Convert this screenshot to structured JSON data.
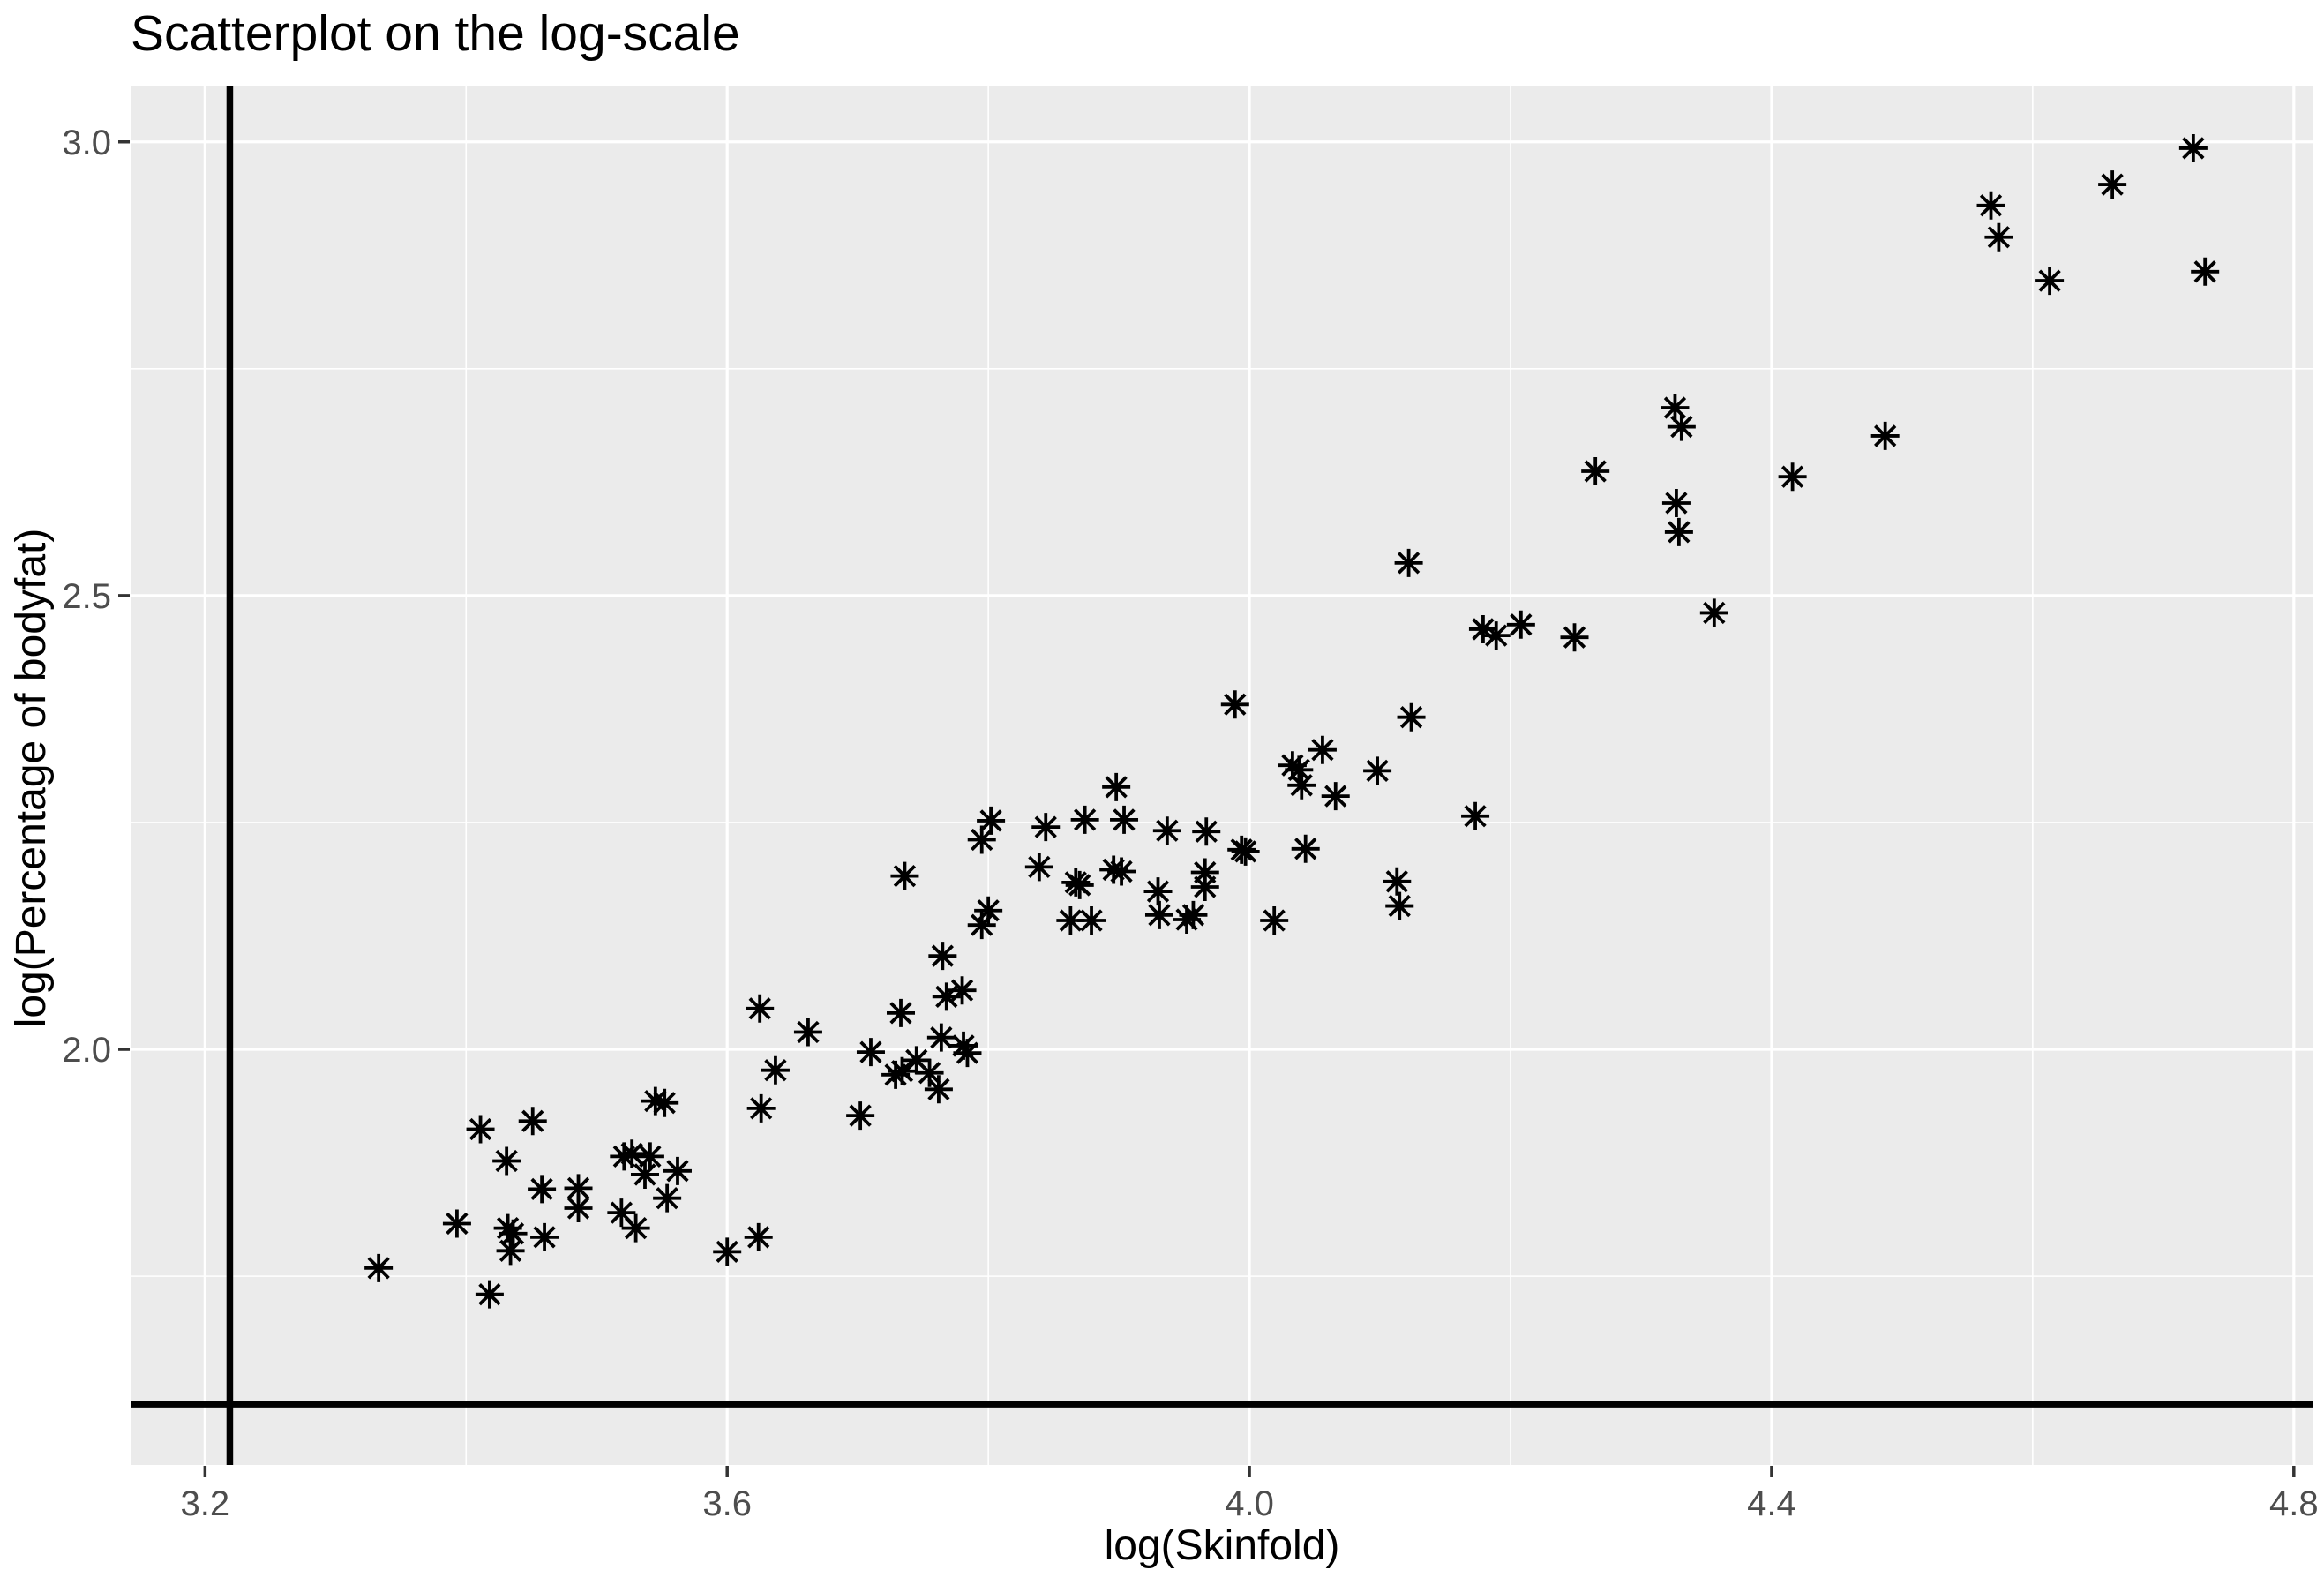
{
  "title": "Scatterplot on the log-scale",
  "chart_data": {
    "type": "scatter",
    "title": "Scatterplot on the log-scale",
    "xlabel": "log(Skinfold)",
    "ylabel": "log(Percentage of bodyfat)",
    "marker": "asterisk-8-spoke",
    "grid": "on",
    "legend": "none",
    "xlim": [
      3.143,
      4.815
    ],
    "ylim": [
      1.542,
      3.062
    ],
    "x_ticks": [
      3.2,
      3.6,
      4.0,
      4.4,
      4.8
    ],
    "x_tick_labels": [
      "3.2",
      "3.6",
      "4.0",
      "4.4",
      "4.8"
    ],
    "y_ticks": [
      2.0,
      2.5,
      3.0
    ],
    "y_tick_labels": [
      "2.0",
      "2.5",
      "3.0"
    ],
    "x_minor_gridlines": [
      3.4,
      3.8,
      4.2,
      4.6
    ],
    "y_minor_gridlines": [
      1.75,
      2.25,
      2.75
    ],
    "vline_x": 3.219,
    "hline_y": 1.609,
    "colors": {
      "panel_background": "#EBEBEB",
      "gridline": "#FFFFFF",
      "tick_mark": "#333333",
      "tick_label": "#4D4D4D",
      "point": "#000000",
      "reference_line": "#000000",
      "title": "#000000"
    },
    "points": [
      [
        3.333,
        1.759
      ],
      [
        3.393,
        1.808
      ],
      [
        3.411,
        1.912
      ],
      [
        3.418,
        1.73
      ],
      [
        3.431,
        1.877
      ],
      [
        3.432,
        1.803
      ],
      [
        3.436,
        1.797
      ],
      [
        3.434,
        1.778
      ],
      [
        3.451,
        1.921
      ],
      [
        3.458,
        1.846
      ],
      [
        3.46,
        1.793
      ],
      [
        3.486,
        1.847
      ],
      [
        3.486,
        1.825
      ],
      [
        3.519,
        1.82
      ],
      [
        3.521,
        1.882
      ],
      [
        3.527,
        1.885
      ],
      [
        3.53,
        1.803
      ],
      [
        3.537,
        1.862
      ],
      [
        3.541,
        1.882
      ],
      [
        3.545,
        1.943
      ],
      [
        3.552,
        1.941
      ],
      [
        3.554,
        1.836
      ],
      [
        3.562,
        1.866
      ],
      [
        3.6,
        1.777
      ],
      [
        3.624,
        1.793
      ],
      [
        3.625,
        2.045
      ],
      [
        3.626,
        1.935
      ],
      [
        3.637,
        1.977
      ],
      [
        3.662,
        2.019
      ],
      [
        3.702,
        1.927
      ],
      [
        3.71,
        1.997
      ],
      [
        3.729,
        1.972
      ],
      [
        3.733,
        2.04
      ],
      [
        3.734,
        1.976
      ],
      [
        3.736,
        2.191
      ],
      [
        3.745,
        1.988
      ],
      [
        3.755,
        1.974
      ],
      [
        3.762,
        1.956
      ],
      [
        3.764,
        2.013
      ],
      [
        3.765,
        2.103
      ],
      [
        3.768,
        2.058
      ],
      [
        3.78,
        2.065
      ],
      [
        3.781,
        2.004
      ],
      [
        3.784,
        1.996
      ],
      [
        3.795,
        2.231
      ],
      [
        3.795,
        2.137
      ],
      [
        3.8,
        2.153
      ],
      [
        3.802,
        2.252
      ],
      [
        3.839,
        2.201
      ],
      [
        3.844,
        2.245
      ],
      [
        3.863,
        2.142
      ],
      [
        3.867,
        2.184
      ],
      [
        3.87,
        2.181
      ],
      [
        3.874,
        2.253
      ],
      [
        3.879,
        2.142
      ],
      [
        3.896,
        2.198
      ],
      [
        3.898,
        2.289
      ],
      [
        3.902,
        2.196
      ],
      [
        3.904,
        2.253
      ],
      [
        3.93,
        2.174
      ],
      [
        3.931,
        2.148
      ],
      [
        3.937,
        2.241
      ],
      [
        3.952,
        2.143
      ],
      [
        3.957,
        2.148
      ],
      [
        3.966,
        2.195
      ],
      [
        3.966,
        2.179
      ],
      [
        3.967,
        2.24
      ],
      [
        3.989,
        2.38
      ],
      [
        3.994,
        2.22
      ],
      [
        3.997,
        2.218
      ],
      [
        4.019,
        2.142
      ],
      [
        4.033,
        2.313
      ],
      [
        4.038,
        2.308
      ],
      [
        4.04,
        2.291
      ],
      [
        4.043,
        2.221
      ],
      [
        4.056,
        2.33
      ],
      [
        4.066,
        2.279
      ],
      [
        4.098,
        2.307
      ],
      [
        4.113,
        2.185
      ],
      [
        4.115,
        2.158
      ],
      [
        4.122,
        2.536
      ],
      [
        4.124,
        2.366
      ],
      [
        4.173,
        2.257
      ],
      [
        4.179,
        2.463
      ],
      [
        4.189,
        2.456
      ],
      [
        4.208,
        2.468
      ],
      [
        4.249,
        2.454
      ],
      [
        4.265,
        2.637
      ],
      [
        4.326,
        2.707
      ],
      [
        4.327,
        2.602
      ],
      [
        4.329,
        2.57
      ],
      [
        4.331,
        2.686
      ],
      [
        4.356,
        2.481
      ],
      [
        4.416,
        2.631
      ],
      [
        4.487,
        2.676
      ],
      [
        4.568,
        2.93
      ],
      [
        4.574,
        2.895
      ],
      [
        4.613,
        2.847
      ],
      [
        4.661,
        2.953
      ],
      [
        4.723,
        2.993
      ],
      [
        4.732,
        2.857
      ]
    ]
  }
}
